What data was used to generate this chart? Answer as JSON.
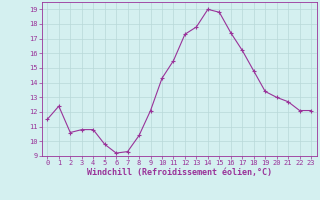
{
  "x": [
    0,
    1,
    2,
    3,
    4,
    5,
    6,
    7,
    8,
    9,
    10,
    11,
    12,
    13,
    14,
    15,
    16,
    17,
    18,
    19,
    20,
    21,
    22,
    23
  ],
  "y": [
    11.5,
    12.4,
    10.6,
    10.8,
    10.8,
    9.8,
    9.2,
    9.3,
    10.4,
    12.1,
    14.3,
    15.5,
    17.3,
    17.8,
    19.0,
    18.8,
    17.4,
    16.2,
    14.8,
    13.4,
    13.0,
    12.7,
    12.1,
    12.1
  ],
  "line_color": "#993399",
  "marker": "+",
  "marker_size": 3,
  "bg_color": "#d4f0f0",
  "grid_color": "#b8d8d8",
  "xlabel": "Windchill (Refroidissement éolien,°C)",
  "ylim": [
    9,
    19.5
  ],
  "xlim": [
    -0.5,
    23.5
  ],
  "yticks": [
    9,
    10,
    11,
    12,
    13,
    14,
    15,
    16,
    17,
    18,
    19
  ],
  "xticks": [
    0,
    1,
    2,
    3,
    4,
    5,
    6,
    7,
    8,
    9,
    10,
    11,
    12,
    13,
    14,
    15,
    16,
    17,
    18,
    19,
    20,
    21,
    22,
    23
  ],
  "tick_color": "#993399",
  "xlabel_color": "#993399",
  "axis_color": "#993399",
  "tick_fontsize": 5,
  "xlabel_fontsize": 6,
  "linewidth": 0.8,
  "markeredgewidth": 0.8
}
